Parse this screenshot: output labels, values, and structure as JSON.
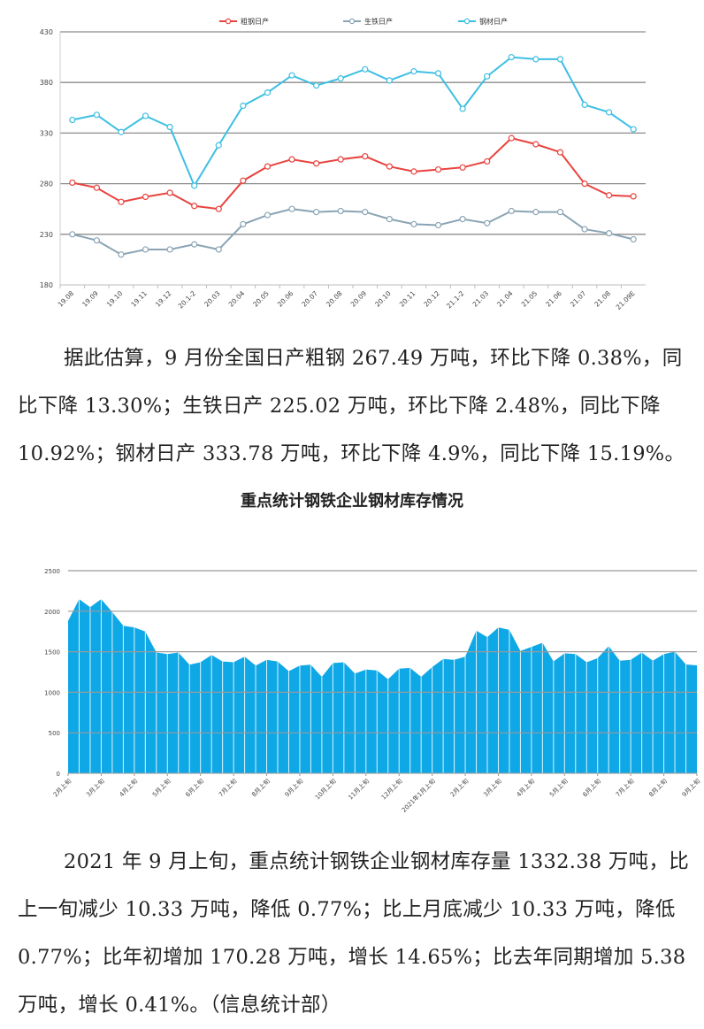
{
  "chart_data": [
    {
      "type": "line",
      "categories": [
        "19.08",
        "19.09",
        "19.10",
        "19.11",
        "19.12",
        "20.1-2",
        "20.03",
        "20.04",
        "20.05",
        "20.06",
        "20.07",
        "20.08",
        "20.09",
        "20.10",
        "20.11",
        "20.12",
        "21.1-2",
        "21.03",
        "21.04",
        "21.05",
        "21.06",
        "21.07",
        "21.08",
        "21.09E"
      ],
      "ylim": [
        180,
        430
      ],
      "yticks": [
        180,
        230,
        280,
        330,
        380,
        430
      ],
      "grid": true,
      "legend": "top",
      "series": [
        {
          "name": "粗钢日产",
          "color": "#e8433e",
          "values": [
            281,
            276,
            262,
            267,
            271,
            258,
            255,
            283,
            297,
            304,
            300,
            304,
            307,
            297,
            292,
            294,
            296,
            302,
            325,
            319,
            311,
            280,
            268.5,
            267.49
          ]
        },
        {
          "name": "生铁日产",
          "color": "#8aa4b4",
          "values": [
            230,
            224,
            210,
            215,
            215,
            220,
            215,
            240,
            249,
            255,
            252,
            253,
            252,
            245,
            240,
            239,
            245,
            241,
            253,
            252,
            252,
            235,
            231,
            225.02
          ]
        },
        {
          "name": "钢材日产",
          "color": "#3dbfe3",
          "values": [
            343,
            348,
            331,
            347,
            336,
            278,
            318,
            357,
            370,
            387,
            377,
            384,
            393,
            382,
            391,
            389,
            354,
            386,
            405,
            403,
            403,
            358,
            350.5,
            333.78
          ]
        }
      ]
    },
    {
      "type": "area",
      "title": "重点统计钢铁企业钢材库存情况",
      "ylim": [
        0,
        2500
      ],
      "yticks": [
        0,
        500,
        1000,
        1500,
        2000,
        2500
      ],
      "grid": true,
      "color": "#0fa8e6",
      "xticklabels": [
        "2月上旬",
        "3月上旬",
        "4月上旬",
        "5月上旬",
        "6月上旬",
        "7月上旬",
        "8月上旬",
        "9月上旬",
        "10月上旬",
        "11月上旬",
        "12月上旬",
        "2021年1月上旬",
        "2月上旬",
        "3月上旬",
        "4月上旬",
        "5月上旬",
        "6月上旬",
        "7月上旬",
        "8月上旬",
        "9月上旬"
      ],
      "tick_interval": 3,
      "values": [
        1880,
        2150,
        2050,
        2150,
        1990,
        1820,
        1800,
        1750,
        1490,
        1470,
        1490,
        1340,
        1370,
        1460,
        1380,
        1370,
        1440,
        1330,
        1400,
        1380,
        1260,
        1330,
        1340,
        1190,
        1360,
        1370,
        1230,
        1280,
        1270,
        1160,
        1290,
        1300,
        1190,
        1310,
        1410,
        1400,
        1440,
        1760,
        1680,
        1800,
        1770,
        1510,
        1560,
        1610,
        1380,
        1480,
        1470,
        1370,
        1420,
        1570,
        1390,
        1400,
        1490,
        1390,
        1470,
        1500,
        1343,
        1332.38
      ]
    }
  ],
  "text": {
    "para1": "据此估算，9 月份全国日产粗钢 267.49 万吨，环比下降 0.38%，同比下降 13.30%；生铁日产 225.02 万吨，环比下降 2.48%，同比下降 10.92%；钢材日产 333.78 万吨，环比下降 4.9%，同比下降 15.19%。",
    "chart2_title": "重点统计钢铁企业钢材库存情况",
    "para2": "2021 年 9 月上旬，重点统计钢铁企业钢材库存量 1332.38 万吨，比上一旬减少 10.33 万吨，降低 0.77%；比上月底减少 10.33 万吨，降低 0.77%；比年初增加 170.28 万吨，增长 14.65%；比去年同期增加 5.38 万吨，增长 0.41%。（信息统计部）"
  }
}
